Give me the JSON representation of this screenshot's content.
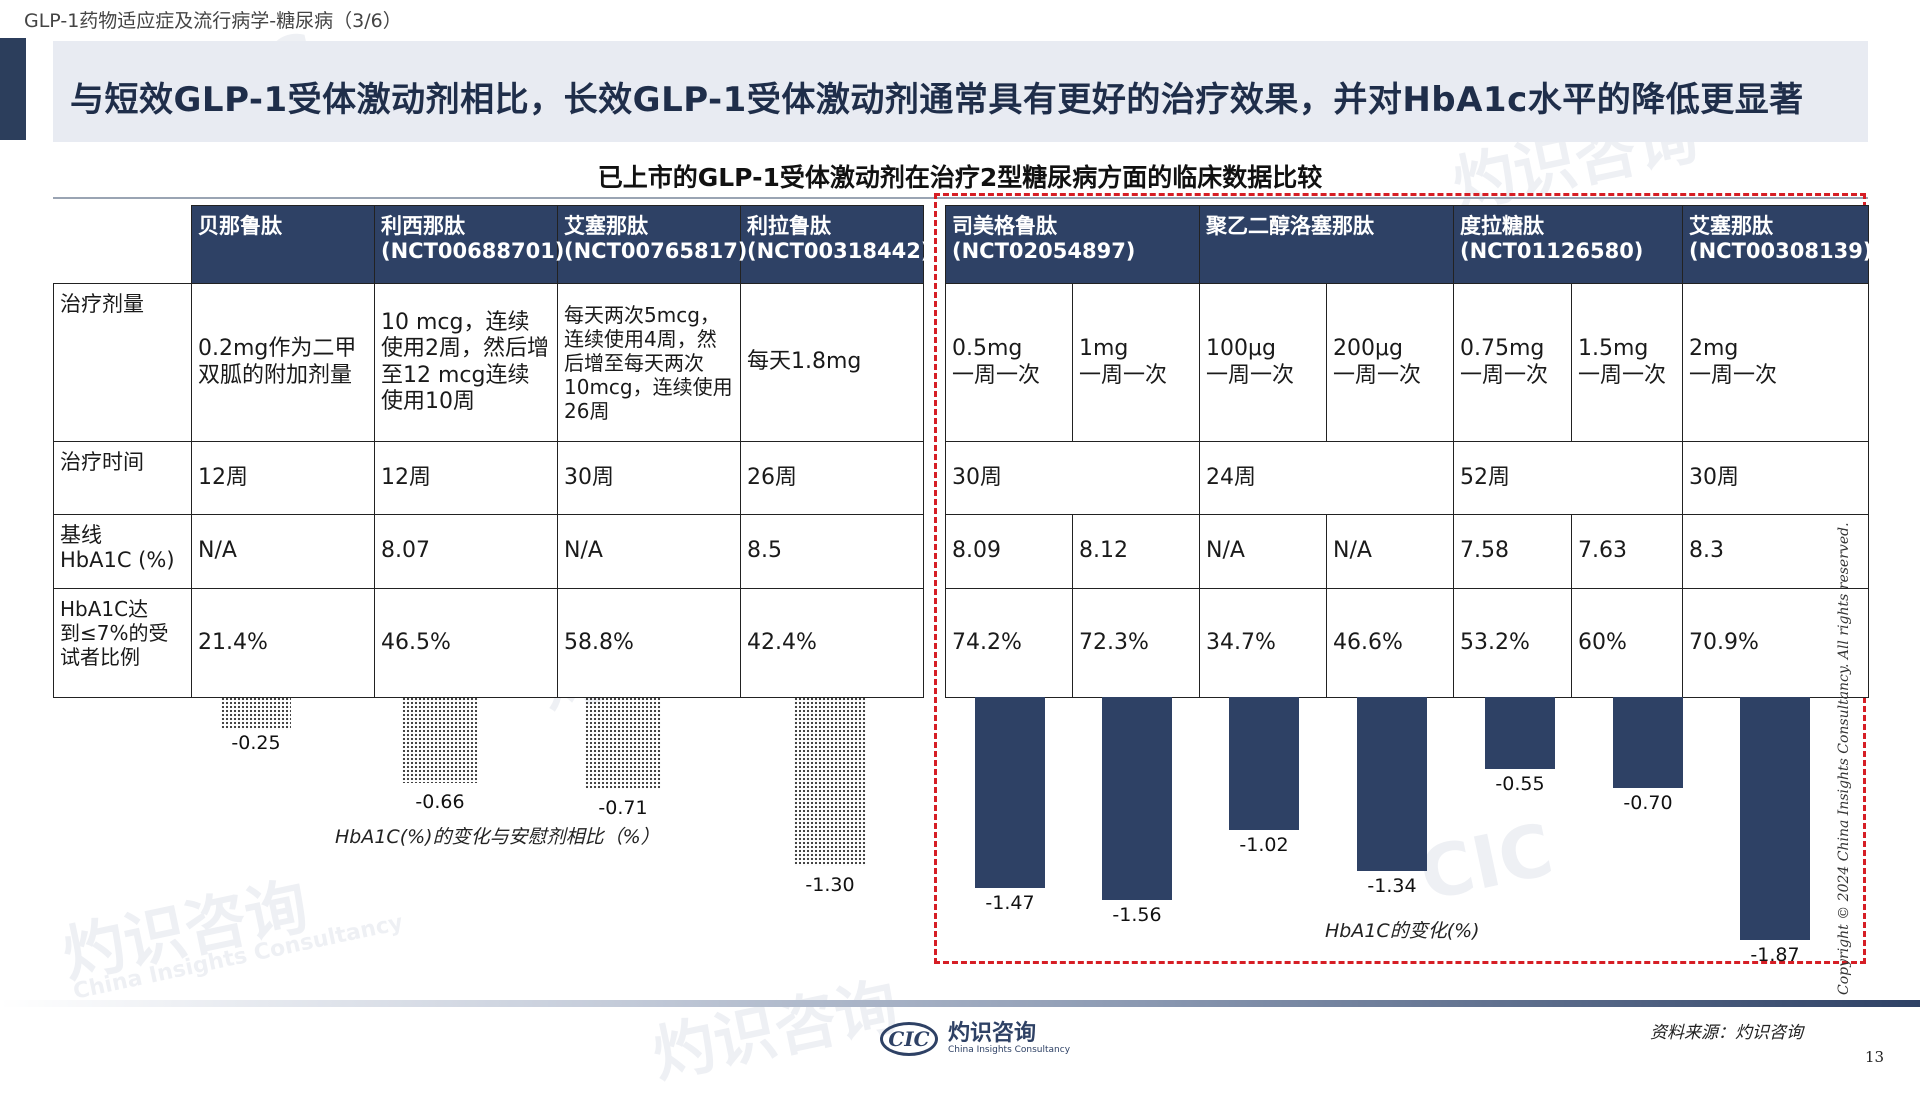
{
  "page_label": "GLP-1药物适应症及流行病学-糖尿病（3/6）",
  "headline": "与短效GLP-1受体激动剂相比，长效GLP-1受体激动剂通常具有更好的治疗效果，并对HbA1c水平的降低更显著",
  "chart_title": "已上市的GLP-1受体激动剂在治疗2型糖尿病方面的临床数据比较",
  "row_labels": {
    "dose": "治疗剂量",
    "duration": "治疗时间",
    "baseline": "基线\nHbA1C (%)",
    "reach": "HbA1C达\n到≤7%的受\n试者比例"
  },
  "short_acting": {
    "headers": [
      "贝那鲁肽",
      "利西那肽\n(NCT00688701)",
      "艾塞那肽\n(NCT00765817)",
      "利拉鲁肽\n(NCT00318442)"
    ],
    "dose": [
      "0.2mg作为二甲双胍的附加剂量",
      "10 mcg，连续使用2周，然后增至12 mcg连续使用10周",
      "每天两次5mcg，连续使用4周，然后增至每天两次10mcg，连续使用26周",
      "每天1.8mg"
    ],
    "duration": [
      "12周",
      "12周",
      "30周",
      "26周"
    ],
    "baseline": [
      "N/A",
      "8.07",
      "N/A",
      "8.5"
    ],
    "reach": [
      "21.4%",
      "46.5%",
      "58.8%",
      "42.4%"
    ]
  },
  "long_acting": {
    "headers": [
      "司美格鲁肽\n(NCT02054897)",
      "聚乙二醇洛塞那肽",
      "度拉糖肽\n(NCT01126580)",
      "艾塞那肽\n(NCT00308139)"
    ],
    "dose": [
      "0.5mg\n一周一次",
      "1mg\n一周一次",
      "100μg\n一周一次",
      "200μg\n一周一次",
      "0.75mg\n一周一次",
      "1.5mg\n一周一次",
      "2mg\n一周一次"
    ],
    "duration": [
      "30周",
      "24周",
      "52周",
      "30周"
    ],
    "baseline": [
      "8.09",
      "8.12",
      "N/A",
      "N/A",
      "7.58",
      "7.63",
      "8.3"
    ],
    "reach": [
      "74.2%",
      "72.3%",
      "34.7%",
      "46.6%",
      "53.2%",
      "60%",
      "70.9%"
    ]
  },
  "chart_data": [
    {
      "type": "bar",
      "xlabel": "HbA1C(%)的变化与安慰剂相比（%）",
      "categories": [
        "贝那鲁肽",
        "利西那肽",
        "艾塞那肽",
        "利拉鲁肽"
      ],
      "values": [
        -0.25,
        -0.66,
        -0.71,
        -1.3
      ],
      "value_labels": [
        "-0.25",
        "-0.66",
        "-0.71",
        "-1.30"
      ],
      "style": "dotted"
    },
    {
      "type": "bar",
      "xlabel": "HbA1C的变化(%)",
      "categories": [
        "0.5mg",
        "1mg",
        "100μg",
        "200μg",
        "0.75mg",
        "1.5mg",
        "2mg"
      ],
      "values": [
        -1.47,
        -1.56,
        -1.02,
        -1.34,
        -0.55,
        -0.7,
        -1.87
      ],
      "value_labels": [
        "-1.47",
        "-1.56",
        "-1.02",
        "-1.34",
        "-0.55",
        "-0.70",
        "-1.87"
      ],
      "color": "#2e4165"
    }
  ],
  "copyright": "Copyright © 2024 China Insights Consultancy. All rights reserved.",
  "logo": {
    "mark": "CIC",
    "cn": "灼识咨询",
    "en": "China Insights Consultancy"
  },
  "source": "资料来源：灼识咨询",
  "page_number": "13",
  "watermark": {
    "cn": "灼识咨询",
    "en": "China Insights Consultancy",
    "mark": "CIC"
  }
}
